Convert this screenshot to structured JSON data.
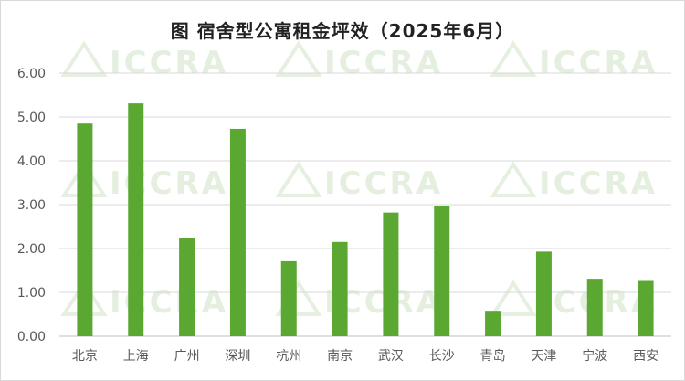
{
  "chart_data": {
    "type": "bar",
    "title": "图 宿舍型公寓租金坪效（2025年6月）",
    "categories": [
      "北京",
      "上海",
      "广州",
      "深圳",
      "杭州",
      "南京",
      "武汉",
      "长沙",
      "青岛",
      "天津",
      "宁波",
      "西安"
    ],
    "values": [
      4.85,
      5.31,
      2.25,
      4.73,
      1.71,
      2.15,
      2.82,
      2.96,
      0.58,
      1.93,
      1.31,
      1.26
    ],
    "ylim": [
      0,
      6
    ],
    "yticks": [
      "0.00",
      "1.00",
      "2.00",
      "3.00",
      "4.00",
      "5.00",
      "6.00"
    ],
    "xlabel": "",
    "ylabel": "",
    "grid": true,
    "legend": "none",
    "bar_color": "#5aa832",
    "grid_color": "#d9d9d9"
  },
  "watermark": {
    "text": "ICCRA"
  }
}
